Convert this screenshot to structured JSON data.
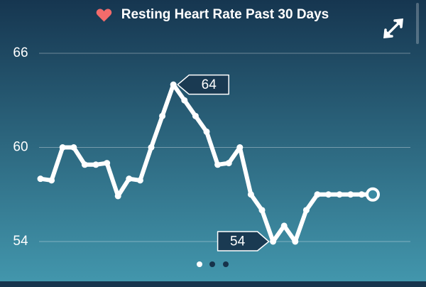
{
  "chart_data": {
    "type": "line",
    "title": "Resting Heart Rate Past 30 Days",
    "values": [
      58,
      57.9,
      60,
      60,
      58.9,
      58.9,
      59,
      56.9,
      58,
      57.9,
      60,
      62,
      64,
      63,
      62,
      61,
      58.9,
      59,
      60,
      57,
      56,
      54,
      55,
      54,
      56,
      57,
      57,
      57,
      57,
      57,
      57
    ],
    "color": "#ffffff",
    "ylim": [
      54,
      66
    ],
    "yticks": [
      54,
      60,
      66
    ],
    "grid": true,
    "annotations": [
      "64",
      "54"
    ]
  }
}
